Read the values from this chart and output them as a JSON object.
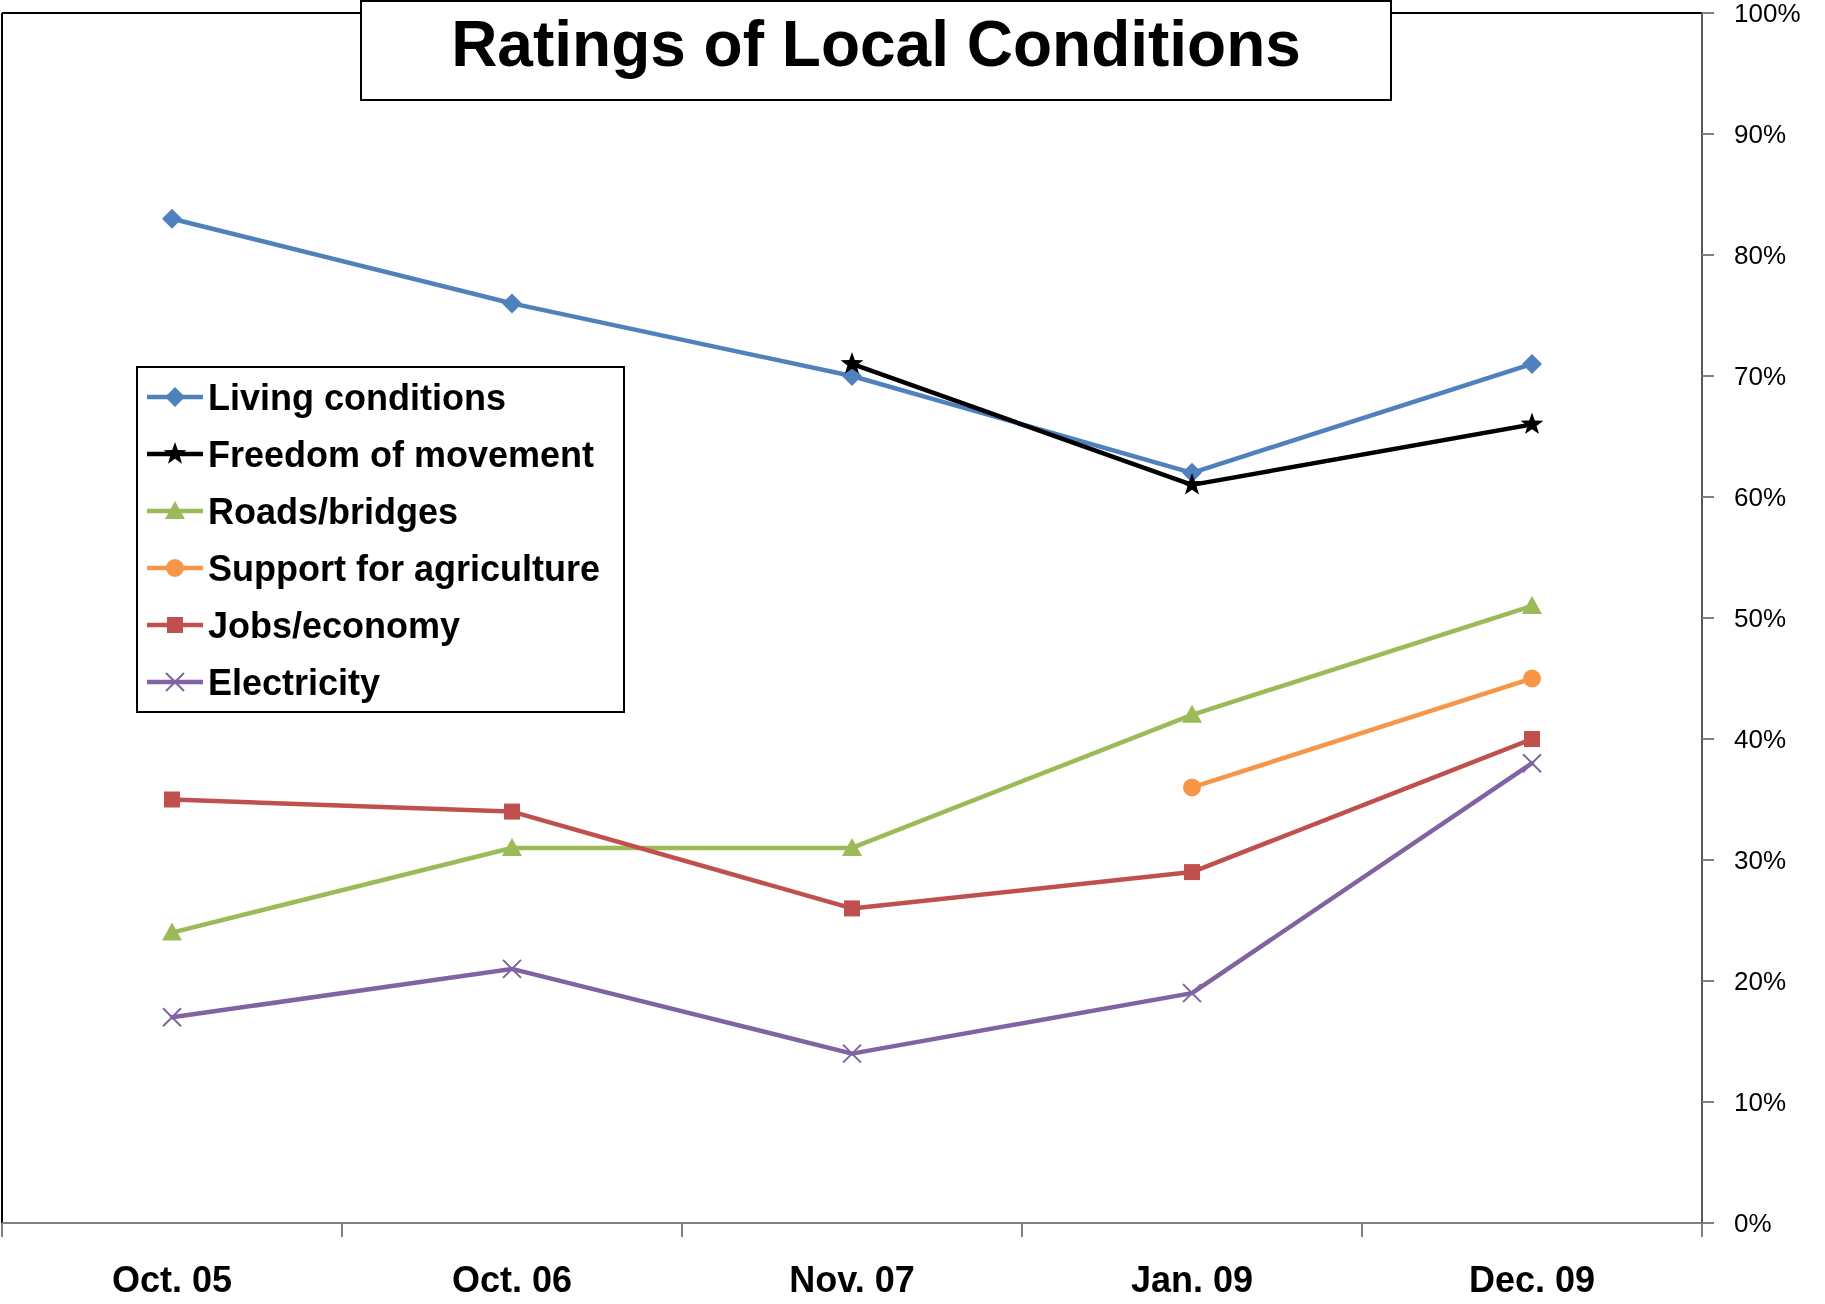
{
  "chart_data": {
    "type": "line",
    "title": "Ratings of Local Conditions",
    "categories": [
      "Oct. 05",
      "Oct. 06",
      "Nov. 07",
      "Jan. 09",
      "Dec. 09"
    ],
    "series": [
      {
        "name": "Living conditions",
        "color": "#4f81bd",
        "marker": "diamond",
        "values": [
          83,
          76,
          70,
          62,
          71
        ]
      },
      {
        "name": "Freedom of movement",
        "color": "#000000",
        "marker": "star",
        "values": [
          null,
          null,
          71,
          61,
          66
        ]
      },
      {
        "name": "Roads/bridges",
        "color": "#9bbb59",
        "marker": "triangle",
        "values": [
          24,
          31,
          31,
          42,
          51
        ]
      },
      {
        "name": "Support for agriculture",
        "color": "#f79646",
        "marker": "circle",
        "values": [
          null,
          null,
          null,
          36,
          45
        ]
      },
      {
        "name": "Jobs/economy",
        "color": "#c0504d",
        "marker": "square",
        "values": [
          35,
          34,
          26,
          29,
          40
        ]
      },
      {
        "name": "Electricity",
        "color": "#8064a2",
        "marker": "cross",
        "values": [
          17,
          21,
          14,
          19,
          38
        ]
      }
    ],
    "ylim": [
      0,
      100
    ],
    "yticks": [
      {
        "value": 0,
        "label": "0%"
      },
      {
        "value": 10,
        "label": "10%"
      },
      {
        "value": 20,
        "label": "20%"
      },
      {
        "value": 30,
        "label": "30%"
      },
      {
        "value": 40,
        "label": "40%"
      },
      {
        "value": 50,
        "label": "50%"
      },
      {
        "value": 60,
        "label": "60%"
      },
      {
        "value": 70,
        "label": "70%"
      },
      {
        "value": 80,
        "label": "80%"
      },
      {
        "value": 90,
        "label": "90%"
      },
      {
        "value": 100,
        "label": "100%"
      }
    ],
    "legend": "left"
  }
}
